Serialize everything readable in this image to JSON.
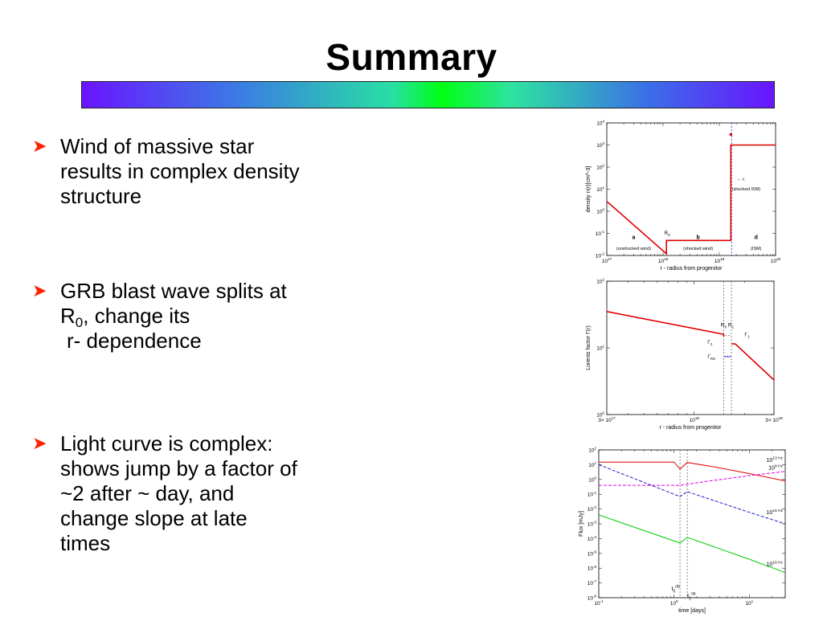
{
  "slide": {
    "title": "Summary"
  },
  "bullets": [
    {
      "lines": [
        "Wind of massive star",
        "results in complex density",
        "structure"
      ]
    },
    {
      "line1": "GRB blast wave splits at",
      "r0_main": "R",
      "r0_sub": "0",
      "line2_rest": ", change its",
      "line3": "r- dependence"
    },
    {
      "lines": [
        "Light curve is complex:",
        "shows jump by a factor of",
        "~2 after ~ day, and",
        "change slope at late",
        "times"
      ]
    }
  ],
  "chart_data": [
    {
      "type": "line",
      "xlabel": "r - radius from progenitor",
      "ylabel": "density n(r)[cm^-3]",
      "x_scale": "log",
      "y_scale": "log",
      "xlim": [
        1e+17,
        1e+20
      ],
      "ylim": [
        0.01,
        10000
      ],
      "x_ticks": [
        "10^17",
        "10^18",
        "10^19",
        "10^20"
      ],
      "y_ticks": [
        "10^4",
        "10^3",
        "10^2",
        "10^1",
        "10^0",
        "10^-1",
        "10^-2"
      ],
      "series": [
        {
          "color": "#e00000",
          "style": "solid",
          "points": [
            [
              1e+17,
              2.8
            ],
            [
              1.15e+18,
              0.012
            ],
            [
              1.15e+18,
              0.048
            ],
            [
              1.6e+19,
              0.048
            ],
            [
              1.6e+19,
              1000
            ],
            [
              1e+20,
              1000
            ]
          ]
        }
      ],
      "vlines": [
        {
          "x": 1.65e+19,
          "color": "#0000cc",
          "style": "dashed"
        }
      ],
      "annotations": [
        {
          "text": "a",
          "x": 3e+17,
          "y": 0.055,
          "bold": true
        },
        {
          "text": "(unshocked wind)",
          "x": 3e+17,
          "y": 0.018
        },
        {
          "text": "R0",
          "x": 1.05e+18,
          "y": 0.09
        },
        {
          "text": "b",
          "x": 4.2e+18,
          "y": 0.055,
          "bold": true
        },
        {
          "text": "(shocked wind)",
          "x": 4.2e+18,
          "y": 0.018
        },
        {
          "text": "d",
          "x": 4.5e+19,
          "y": 0.055,
          "bold": true
        },
        {
          "text": "(ISM)",
          "x": 4.5e+19,
          "y": 0.018
        },
        {
          "text": "← c",
          "x": 2.4e+19,
          "y": 25
        },
        {
          "text": "(shocked ISM)",
          "x": 3e+19,
          "y": 9
        }
      ]
    },
    {
      "type": "line",
      "xlabel": "r - radius from progenitor",
      "ylabel": "Lorentz factor Γ(r)",
      "x_scale": "log",
      "y_scale": "log",
      "xlim": [
        3e+17,
        3e+18
      ],
      "ylim": [
        1,
        100
      ],
      "x_ticks": [
        "3× 10^17",
        "10^18",
        "3× 10^18"
      ],
      "y_ticks": [
        "10^2",
        "10^1",
        "10^0"
      ],
      "series": [
        {
          "color": "#e00000",
          "style": "solid",
          "points": [
            [
              3e+17,
              35
            ],
            [
              1.5e+18,
              16
            ],
            [
              1.5e+18,
              15.3
            ],
            [
              1.5e+18,
              14.8
            ]
          ]
        },
        {
          "color": "#e00000",
          "style": "solid",
          "points": [
            [
              1.67e+18,
              11.5
            ],
            [
              1.76e+18,
              11.5
            ],
            [
              3e+18,
              3.3
            ]
          ]
        }
      ],
      "vlines": [
        {
          "x": 1.5e+18,
          "color": "#555555",
          "style": "dashed"
        },
        {
          "x": 1.67e+18,
          "color": "#555555",
          "style": "dashed"
        }
      ],
      "annotations": [
        {
          "text": "R0 R1",
          "x": 1.56e+18,
          "y": 21
        },
        {
          "text": "Γ1",
          "x": 2e+18,
          "y": 15
        },
        {
          "text": "Γ2",
          "x": 1.2e+18,
          "y": 11.5
        },
        {
          "text": "ΓRS",
          "x": 1.2e+18,
          "y": 7
        }
      ]
    },
    {
      "type": "line",
      "xlabel": "time [days]",
      "ylabel": "Flux [mJy]",
      "x_scale": "log",
      "y_scale": "log",
      "xlim": [
        0.1,
        30
      ],
      "ylim": [
        1e-08,
        100
      ],
      "x_ticks": [
        "10^-1",
        "10^0",
        "10^1"
      ],
      "y_ticks": [
        "10^2",
        "10^1",
        "10^0",
        "10^-1",
        "10^-2",
        "10^-3",
        "10^-4",
        "10^-5",
        "10^-6",
        "10^-7",
        "10^-8"
      ],
      "series": [
        {
          "name": "10^9 Hz",
          "color": "#e00000",
          "style": "solid",
          "points": [
            [
              0.1,
              15
            ],
            [
              1.0,
              15
            ],
            [
              1.2,
              5
            ],
            [
              1.5,
              14
            ],
            [
              3,
              8
            ],
            [
              10,
              2.5
            ],
            [
              30,
              0.8
            ]
          ]
        },
        {
          "name": "10^13 Hz",
          "color": "#e000e0",
          "style": "dashed",
          "points": [
            [
              0.1,
              0.4
            ],
            [
              1.2,
              0.4
            ],
            [
              3,
              0.8
            ],
            [
              10,
              1.8
            ],
            [
              30,
              3.5
            ]
          ]
        },
        {
          "name": "10^15 Hz",
          "color": "#2020c0",
          "style": "dashed",
          "points": [
            [
              0.1,
              10
            ],
            [
              1.2,
              0.07
            ],
            [
              1.5,
              0.15
            ],
            [
              10,
              0.006
            ],
            [
              30,
              0.001
            ]
          ]
        },
        {
          "name": "10^18 Hz",
          "color": "#00cc00",
          "style": "solid",
          "points": [
            [
              0.1,
              0.004
            ],
            [
              1.2,
              5e-05
            ],
            [
              1.5,
              0.00012
            ],
            [
              10,
              4e-06
            ],
            [
              30,
              5e-07
            ]
          ]
        }
      ],
      "vlines": [
        {
          "x": 1.2,
          "color": "#555555",
          "style": "dashed"
        },
        {
          "x": 1.5,
          "color": "#555555",
          "style": "dashed"
        }
      ],
      "annotations": [
        {
          "text": "t0 ob",
          "x": 1.05,
          "y": 3e-08
        },
        {
          "text": "t1 ob",
          "x": 1.7,
          "y": 1e-08
        }
      ]
    }
  ]
}
